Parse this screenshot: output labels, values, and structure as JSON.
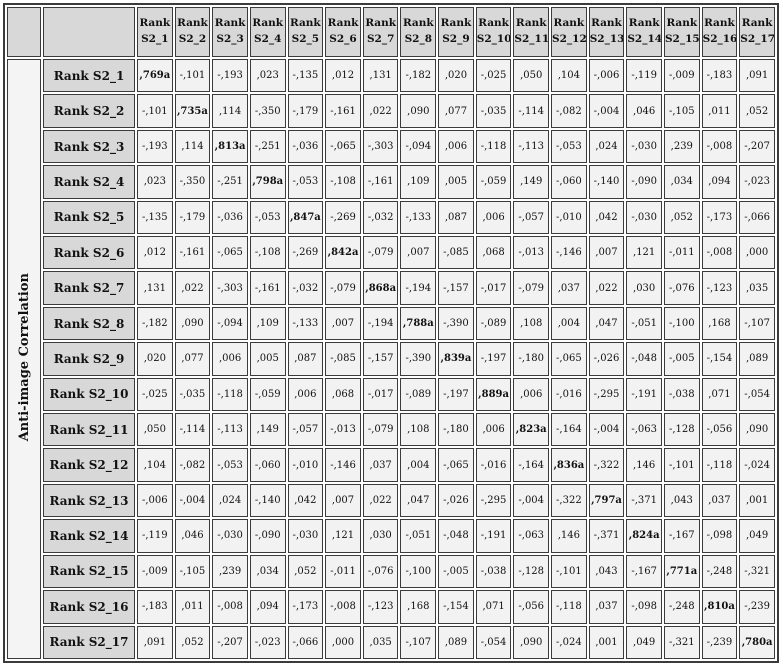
{
  "table": {
    "row_group_label": "Anti-image Correlation",
    "corner_blank": "",
    "column_headers": [
      "Rank S2_1",
      "Rank S2_2",
      "Rank S2_3",
      "Rank S2_4",
      "Rank S2_5",
      "Rank S2_6",
      "Rank S2_7",
      "Rank S2_8",
      "Rank S2_9",
      "Rank S2_10",
      "Rank S2_11",
      "Rank S2_12",
      "Rank S2_13",
      "Rank S2_14",
      "Rank S2_15",
      "Rank S2_16",
      "Rank S2_17"
    ],
    "row_headers": [
      "Rank S2_1",
      "Rank S2_2",
      "Rank S2_3",
      "Rank S2_4",
      "Rank S2_5",
      "Rank S2_6",
      "Rank S2_7",
      "Rank S2_8",
      "Rank S2_9",
      "Rank S2_10",
      "Rank S2_11",
      "Rank S2_12",
      "Rank S2_13",
      "Rank S2_14",
      "Rank S2_15",
      "Rank S2_16",
      "Rank S2_17"
    ],
    "diagonal_marker": "a",
    "matrix": [
      [
        ",769a",
        "-,101",
        "-,193",
        ",023",
        "-,135",
        ",012",
        ",131",
        "-,182",
        ",020",
        "-,025",
        ",050",
        ",104",
        "-,006",
        "-,119",
        "-,009",
        "-,183",
        ",091"
      ],
      [
        "-,101",
        ",735a",
        ",114",
        "-,350",
        "-,179",
        "-,161",
        ",022",
        ",090",
        ",077",
        "-,035",
        "-,114",
        "-,082",
        "-,004",
        ",046",
        "-,105",
        ",011",
        ",052"
      ],
      [
        "-,193",
        ",114",
        ",813a",
        "-,251",
        "-,036",
        "-,065",
        "-,303",
        "-,094",
        ",006",
        "-,118",
        "-,113",
        "-,053",
        ",024",
        "-,030",
        ",239",
        "-,008",
        "-,207"
      ],
      [
        ",023",
        "-,350",
        "-,251",
        ",798a",
        "-,053",
        "-,108",
        "-,161",
        ",109",
        ",005",
        "-,059",
        ",149",
        "-,060",
        "-,140",
        "-,090",
        ",034",
        ",094",
        "-,023"
      ],
      [
        "-,135",
        "-,179",
        "-,036",
        "-,053",
        ",847a",
        "-,269",
        "-,032",
        "-,133",
        ",087",
        ",006",
        "-,057",
        "-,010",
        ",042",
        "-,030",
        ",052",
        "-,173",
        "-,066"
      ],
      [
        ",012",
        "-,161",
        "-,065",
        "-,108",
        "-,269",
        ",842a",
        "-,079",
        ",007",
        "-,085",
        ",068",
        "-,013",
        "-,146",
        ",007",
        ",121",
        "-,011",
        "-,008",
        ",000"
      ],
      [
        ",131",
        ",022",
        "-,303",
        "-,161",
        "-,032",
        "-,079",
        ",868a",
        "-,194",
        "-,157",
        "-,017",
        "-,079",
        ",037",
        ",022",
        ",030",
        "-,076",
        "-,123",
        ",035"
      ],
      [
        "-,182",
        ",090",
        "-,094",
        ",109",
        "-,133",
        ",007",
        "-,194",
        ",788a",
        "-,390",
        "-,089",
        ",108",
        ",004",
        ",047",
        "-,051",
        "-,100",
        ",168",
        "-,107"
      ],
      [
        ",020",
        ",077",
        ",006",
        ",005",
        ",087",
        "-,085",
        "-,157",
        "-,390",
        ",839a",
        "-,197",
        "-,180",
        "-,065",
        "-,026",
        "-,048",
        "-,005",
        "-,154",
        ",089"
      ],
      [
        "-,025",
        "-,035",
        "-,118",
        "-,059",
        ",006",
        ",068",
        "-,017",
        "-,089",
        "-,197",
        ",889a",
        ",006",
        "-,016",
        "-,295",
        "-,191",
        "-,038",
        ",071",
        "-,054"
      ],
      [
        ",050",
        "-,114",
        "-,113",
        ",149",
        "-,057",
        "-,013",
        "-,079",
        ",108",
        "-,180",
        ",006",
        ",823a",
        "-,164",
        "-,004",
        "-,063",
        "-,128",
        "-,056",
        ",090"
      ],
      [
        ",104",
        "-,082",
        "-,053",
        "-,060",
        "-,010",
        "-,146",
        ",037",
        ",004",
        "-,065",
        "-,016",
        "-,164",
        ",836a",
        "-,322",
        ",146",
        "-,101",
        "-,118",
        "-,024"
      ],
      [
        "-,006",
        "-,004",
        ",024",
        "-,140",
        ",042",
        ",007",
        ",022",
        ",047",
        "-,026",
        "-,295",
        "-,004",
        "-,322",
        ",797a",
        "-,371",
        ",043",
        ",037",
        ",001"
      ],
      [
        "-,119",
        ",046",
        "-,030",
        "-,090",
        "-,030",
        ",121",
        ",030",
        "-,051",
        "-,048",
        "-,191",
        "-,063",
        ",146",
        "-,371",
        ",824a",
        "-,167",
        "-,098",
        ",049"
      ],
      [
        "-,009",
        "-,105",
        ",239",
        ",034",
        ",052",
        "-,011",
        "-,076",
        "-,100",
        "-,005",
        "-,038",
        "-,128",
        "-,101",
        ",043",
        "-,167",
        ",771a",
        "-,248",
        "-,321"
      ],
      [
        "-,183",
        ",011",
        "-,008",
        ",094",
        "-,173",
        "-,008",
        "-,123",
        ",168",
        "-,154",
        ",071",
        "-,056",
        "-,118",
        ",037",
        "-,098",
        "-,248",
        ",810a",
        "-,239"
      ],
      [
        ",091",
        ",052",
        "-,207",
        "-,023",
        "-,066",
        ",000",
        ",035",
        "-,107",
        ",089",
        "-,054",
        ",090",
        "-,024",
        ",001",
        ",049",
        "-,321",
        "-,239",
        ",780a"
      ]
    ]
  },
  "colors": {
    "header_bg": "#d8d8d8",
    "cell_bg": "#f2f2f2",
    "label_bg": "#f4f4f4",
    "border": "#3b3b3b"
  }
}
